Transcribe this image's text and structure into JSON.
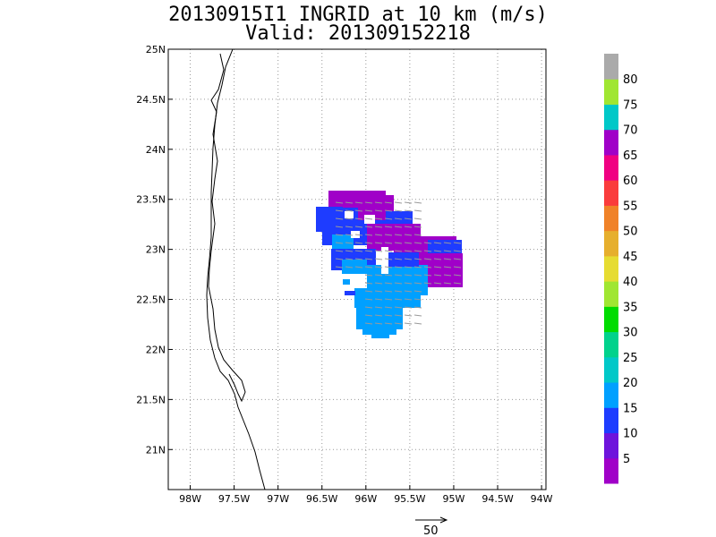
{
  "header": {
    "title_line1": "20130915I1 INGRID at 10 km (m/s)",
    "title_line2": "Valid: 201309152218"
  },
  "map": {
    "lon_range": [
      -98.25,
      -93.95
    ],
    "lat_range": [
      20.6,
      25.0
    ],
    "x_ticks": [
      {
        "lon": -98.0,
        "label": "98W"
      },
      {
        "lon": -97.5,
        "label": "97.5W"
      },
      {
        "lon": -97.0,
        "label": "97W"
      },
      {
        "lon": -96.5,
        "label": "96.5W"
      },
      {
        "lon": -96.0,
        "label": "96W"
      },
      {
        "lon": -95.5,
        "label": "95.5W"
      },
      {
        "lon": -95.0,
        "label": "95W"
      },
      {
        "lon": -94.5,
        "label": "94.5W"
      },
      {
        "lon": -94.0,
        "label": "94W"
      }
    ],
    "y_ticks": [
      {
        "lat": 21.0,
        "label": "21N"
      },
      {
        "lat": 21.5,
        "label": "21.5N"
      },
      {
        "lat": 22.0,
        "label": "22N"
      },
      {
        "lat": 22.5,
        "label": "22.5N"
      },
      {
        "lat": 23.0,
        "label": "23N"
      },
      {
        "lat": 23.5,
        "label": "23.5N"
      },
      {
        "lat": 24.0,
        "label": "24N"
      },
      {
        "lat": 24.5,
        "label": "24.5N"
      },
      {
        "lat": 25.0,
        "label": "25N"
      }
    ],
    "grid": "dotted",
    "coastline_color": "#000000"
  },
  "colorbar": {
    "labels": [
      "5",
      "10",
      "15",
      "20",
      "25",
      "30",
      "35",
      "40",
      "45",
      "50",
      "55",
      "60",
      "65",
      "70",
      "75",
      "80"
    ],
    "colors": [
      "#a000c8",
      "#6e14dc",
      "#1e3cff",
      "#00a0ff",
      "#00c8c8",
      "#00d28c",
      "#00dc00",
      "#a0e632",
      "#e6dc32",
      "#e6af2d",
      "#f08228",
      "#fa3c3c",
      "#f00082",
      "#a000c8",
      "#00c8c8",
      "#a0e632",
      "#aaaaaa"
    ]
  },
  "wind_field": {
    "legend_colors": {
      "violet": "#a000c8",
      "blue": "#1e3cff",
      "sky": "#00a0ff",
      "cyan": "#00c8c8"
    }
  },
  "reference_vector": {
    "label": "50"
  }
}
